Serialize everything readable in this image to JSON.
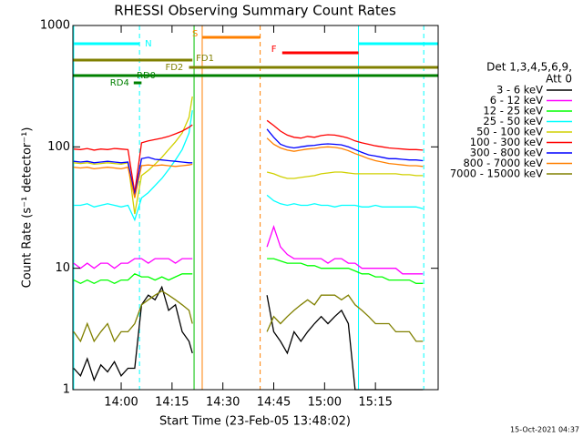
{
  "chart_data": {
    "type": "line",
    "title": "RHESSI Observing Summary Count Rates",
    "xlabel": "Start Time (23-Feb-05 13:48:02)",
    "ylabel": "Count Rate (s⁻¹ detector⁻¹)",
    "footer": "15-Oct-2021 04:37",
    "legend_header": [
      "Det 1,3,4,5,6,9,",
      "Att 0"
    ],
    "log_y": true,
    "xlim": [
      825.75,
      933.5
    ],
    "ylim": [
      1,
      1000
    ],
    "xticks": [
      {
        "value": 840,
        "label": "14:00"
      },
      {
        "value": 855,
        "label": "14:15"
      },
      {
        "value": 870,
        "label": "14:30"
      },
      {
        "value": 885,
        "label": "14:45"
      },
      {
        "value": 900,
        "label": "15:00"
      },
      {
        "value": 915,
        "label": "15:15"
      }
    ],
    "yticks": [
      1,
      10,
      100,
      1000
    ],
    "x": [
      826,
      828,
      830,
      832,
      834,
      836,
      838,
      840,
      842,
      844,
      846,
      848,
      850,
      852,
      854,
      856,
      858,
      860,
      861,
      872,
      883,
      885,
      887,
      889,
      891,
      893,
      895,
      897,
      899,
      901,
      903,
      905,
      907,
      909,
      911,
      913,
      915,
      917,
      919,
      921,
      923,
      925,
      927,
      929
    ],
    "series": [
      {
        "name": "3 - 6 keV",
        "color": "#000000",
        "values": [
          1.5,
          1.3,
          1.8,
          1.2,
          1.6,
          1.4,
          1.7,
          1.3,
          1.5,
          1.5,
          5,
          6,
          5.5,
          7,
          4.5,
          5,
          3,
          2.5,
          2,
          null,
          6,
          3,
          2.5,
          2,
          3,
          2.5,
          3,
          3.5,
          4,
          3.5,
          4,
          4.5,
          3.5,
          1,
          1,
          1,
          1,
          1,
          1,
          1,
          1,
          1,
          1,
          1
        ]
      },
      {
        "name": "6 - 12 keV",
        "color": "#ff00ff",
        "values": [
          11,
          10,
          11,
          10,
          11,
          11,
          10,
          11,
          11,
          12,
          12,
          11,
          12,
          12,
          12,
          11,
          12,
          12,
          12,
          null,
          15,
          22,
          15,
          13,
          12,
          12,
          12,
          12,
          12,
          11,
          12,
          12,
          11,
          11,
          10,
          10,
          10,
          10,
          10,
          10,
          9,
          9,
          9,
          9
        ]
      },
      {
        "name": "12 - 25 keV",
        "color": "#00ff00",
        "values": [
          8,
          7.5,
          8,
          7.5,
          8,
          8,
          7.5,
          8,
          8,
          9,
          8.5,
          8.5,
          8,
          8.5,
          8,
          8.5,
          9,
          9,
          9,
          null,
          12,
          12,
          11.5,
          11,
          11,
          11,
          10.5,
          10.5,
          10,
          10,
          10,
          10,
          10,
          9.5,
          9,
          9,
          8.5,
          8.5,
          8,
          8,
          8,
          8,
          7.5,
          7.5
        ]
      },
      {
        "name": "25 - 50 keV",
        "color": "#00ffff",
        "values": [
          33,
          33,
          34,
          32,
          33,
          34,
          33,
          32,
          33,
          25,
          38,
          42,
          48,
          55,
          65,
          78,
          95,
          130,
          200,
          null,
          40,
          36,
          34,
          33,
          34,
          33,
          33,
          34,
          33,
          33,
          32,
          33,
          33,
          33,
          32,
          32,
          33,
          32,
          32,
          32,
          32,
          32,
          32,
          31
        ]
      },
      {
        "name": "50 - 100 keV",
        "color": "#d0d000",
        "values": [
          74,
          73,
          74,
          72,
          73,
          74,
          73,
          72,
          74,
          28,
          58,
          64,
          72,
          82,
          95,
          110,
          130,
          175,
          260,
          null,
          62,
          60,
          57,
          55,
          55,
          56,
          57,
          58,
          60,
          61,
          62,
          62,
          61,
          60,
          60,
          60,
          60,
          60,
          60,
          60,
          59,
          59,
          58,
          58
        ]
      },
      {
        "name": "100 - 300 keV",
        "color": "#ff0000",
        "values": [
          96,
          95,
          97,
          94,
          96,
          95,
          97,
          96,
          95,
          42,
          108,
          112,
          115,
          118,
          122,
          128,
          135,
          145,
          152,
          null,
          165,
          150,
          135,
          125,
          120,
          118,
          122,
          120,
          124,
          126,
          125,
          122,
          118,
          112,
          108,
          105,
          102,
          100,
          98,
          97,
          96,
          95,
          95,
          94
        ]
      },
      {
        "name": "300 - 800 keV",
        "color": "#0000ff",
        "values": [
          76,
          75,
          76,
          74,
          75,
          76,
          75,
          74,
          75,
          40,
          80,
          82,
          79,
          78,
          77,
          76,
          75,
          74,
          74,
          null,
          140,
          120,
          105,
          100,
          98,
          100,
          102,
          103,
          105,
          106,
          105,
          104,
          100,
          95,
          90,
          86,
          84,
          82,
          80,
          80,
          79,
          78,
          78,
          77
        ]
      },
      {
        "name": "800 - 7000 keV",
        "color": "#ff8000",
        "values": [
          68,
          67,
          68,
          66,
          67,
          68,
          67,
          66,
          68,
          38,
          70,
          71,
          70,
          71,
          70,
          69,
          70,
          71,
          72,
          null,
          118,
          105,
          98,
          94,
          92,
          94,
          96,
          97,
          99,
          100,
          99,
          97,
          93,
          88,
          84,
          80,
          77,
          75,
          73,
          72,
          71,
          70,
          70,
          69
        ]
      },
      {
        "name": "7000 - 15000 keV",
        "color": "#808000",
        "values": [
          3,
          2.5,
          3.5,
          2.5,
          3,
          3.5,
          2.5,
          3,
          3,
          3.5,
          5,
          5.5,
          6,
          6.5,
          6,
          5.5,
          5,
          4.5,
          3.5,
          null,
          3,
          4,
          3.5,
          4,
          4.5,
          5,
          5.5,
          5,
          6,
          6,
          6,
          5.5,
          6,
          5,
          4.5,
          4,
          3.5,
          3.5,
          3.5,
          3,
          3,
          3,
          2.5,
          2.5
        ]
      }
    ],
    "intervals": [
      {
        "label": "S",
        "color": "#ff8000",
        "start": 863.9,
        "end": 881
      },
      {
        "label": "N",
        "color": "#00ffff",
        "start": 825.75,
        "end": 845.4
      },
      {
        "label": "F",
        "color": "#ff0000",
        "start": 887.5,
        "end": 910
      },
      {
        "label": "FD1",
        "color": "#808000",
        "start": 825.75,
        "end": 861
      },
      {
        "label": "FD2",
        "color": "#808000",
        "start": 860,
        "end": 933.5
      },
      {
        "label": "RD0",
        "color": "#008000",
        "start": 825.75,
        "end": 933.5
      },
      {
        "label": "RD4",
        "color": "#008000",
        "start": 843.7,
        "end": 846
      }
    ],
    "extra_intervals": [
      {
        "color": "#00ffff",
        "start": 910,
        "end": 933.5
      }
    ],
    "markers": [
      {
        "x": 826,
        "color": "#00ffff",
        "dashed": false
      },
      {
        "x": 845.4,
        "color": "#00ffff",
        "dashed": true
      },
      {
        "x": 861.5,
        "color": "#00c000",
        "dashed": false
      },
      {
        "x": 863.9,
        "color": "#ff8000",
        "dashed": false
      },
      {
        "x": 881,
        "color": "#ff8000",
        "dashed": true
      },
      {
        "x": 910,
        "color": "#00ffff",
        "dashed": false
      },
      {
        "x": 929.25,
        "color": "#00ffff",
        "dashed": true
      }
    ]
  }
}
